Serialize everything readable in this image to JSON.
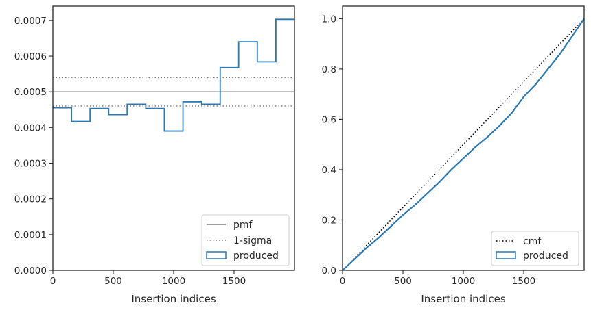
{
  "chart_data": [
    {
      "type": "step",
      "title": "",
      "xlabel": "Insertion indices",
      "ylabel": "",
      "xlim": [
        0,
        2000
      ],
      "ylim": [
        0,
        0.00074
      ],
      "xticks": [
        0,
        500,
        1000,
        1500
      ],
      "xtick_labels": [
        "0",
        "500",
        "1000",
        "1500"
      ],
      "yticks": [
        0,
        0.0001,
        0.0002,
        0.0003,
        0.0004,
        0.0005,
        0.0006,
        0.0007
      ],
      "ytick_labels": [
        "0.0000",
        "0.0001",
        "0.0002",
        "0.0003",
        "0.0004",
        "0.0005",
        "0.0006",
        "0.0007"
      ],
      "grid": false,
      "legend_position": "lower-right",
      "reference_lines": [
        {
          "name": "pmf",
          "style": "solid",
          "color": "#808080",
          "y": 0.0005
        },
        {
          "name": "1-sigma",
          "style": "dotted",
          "color": "#808080",
          "y": [
            0.00046,
            0.00054
          ]
        }
      ],
      "series": [
        {
          "name": "produced",
          "color": "#2878b5",
          "bin_edges": [
            0,
            154,
            308,
            462,
            615,
            769,
            923,
            1077,
            1231,
            1385,
            1538,
            1692,
            1846,
            2000
          ],
          "values": [
            0.000455,
            0.000417,
            0.000453,
            0.000436,
            0.000465,
            0.000453,
            0.00039,
            0.000472,
            0.000465,
            0.000568,
            0.00064,
            0.000584,
            0.000703
          ]
        }
      ]
    },
    {
      "type": "line",
      "title": "",
      "xlabel": "Insertion indices",
      "ylabel": "",
      "xlim": [
        0,
        2000
      ],
      "ylim": [
        0,
        1.05
      ],
      "xticks": [
        0,
        500,
        1000,
        1500
      ],
      "xtick_labels": [
        "0",
        "500",
        "1000",
        "1500"
      ],
      "yticks": [
        0,
        0.2,
        0.4,
        0.6,
        0.8,
        1.0
      ],
      "ytick_labels": [
        "0.0",
        "0.2",
        "0.4",
        "0.6",
        "0.8",
        "1.0"
      ],
      "grid": false,
      "legend_position": "lower-right",
      "series": [
        {
          "name": "cmf",
          "style": "dotted",
          "color": "#000000",
          "x": [
            0,
            2000
          ],
          "y": [
            0,
            1.0
          ]
        },
        {
          "name": "produced",
          "style": "solid",
          "color": "#2878b5",
          "x": [
            0,
            100,
            200,
            300,
            400,
            500,
            600,
            700,
            800,
            900,
            1000,
            1100,
            1200,
            1300,
            1400,
            1500,
            1600,
            1700,
            1800,
            1900,
            2000
          ],
          "y": [
            0,
            0.045,
            0.09,
            0.13,
            0.175,
            0.22,
            0.26,
            0.305,
            0.35,
            0.4,
            0.445,
            0.49,
            0.53,
            0.575,
            0.625,
            0.69,
            0.74,
            0.8,
            0.86,
            0.93,
            1.0
          ]
        }
      ]
    }
  ]
}
